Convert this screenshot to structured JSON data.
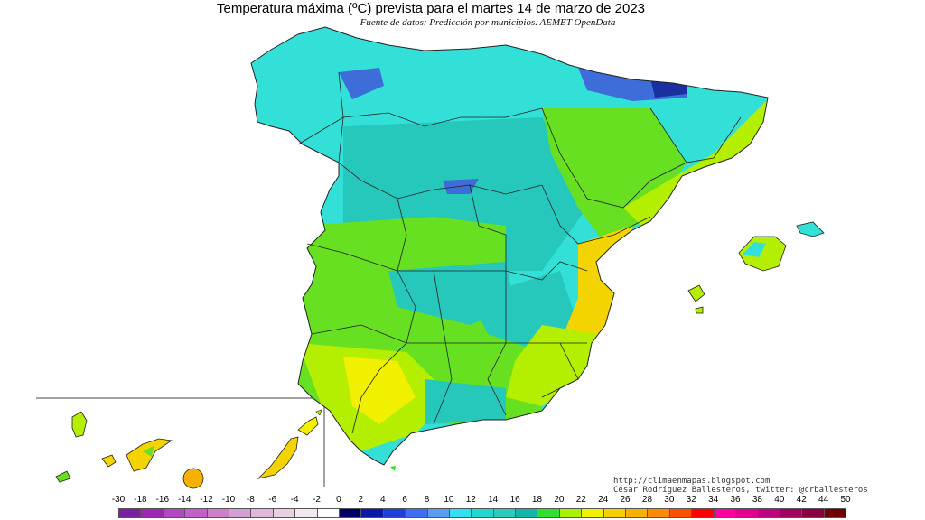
{
  "header": {
    "title": "Temperatura máxima (ºC) prevista para el martes 14 de marzo de 2023",
    "source": "Fuente de datos: Predicción por municipios. AEMET OpenData"
  },
  "credits": {
    "blog": "http://climaenmapas.blogspot.com",
    "author": "César Rodríguez Ballesteros, twitter: @crballesteros"
  },
  "legend": {
    "ticks": [
      "-30",
      "-18",
      "-16",
      "-14",
      "-12",
      "-10",
      "-8",
      "-6",
      "-4",
      "-2",
      "0",
      "2",
      "4",
      "6",
      "8",
      "10",
      "12",
      "14",
      "16",
      "18",
      "20",
      "22",
      "24",
      "26",
      "28",
      "30",
      "32",
      "34",
      "36",
      "38",
      "40",
      "42",
      "44",
      "50"
    ],
    "colors": [
      "#7b1fa2",
      "#9c27b0",
      "#b048c0",
      "#c060c8",
      "#cc80cc",
      "#d4a0d0",
      "#ddb8d8",
      "#e6d0e2",
      "#f0e8ee",
      "#ffffff",
      "#000066",
      "#0a1aa8",
      "#1e3fd8",
      "#3d6ff0",
      "#5a9cf2",
      "#30e0ee",
      "#20d8d0",
      "#2dc8c0",
      "#14b4a8",
      "#30e030",
      "#aaf000",
      "#f0f000",
      "#f4d000",
      "#f8b000",
      "#ff8c00",
      "#ff5000",
      "#ff0000",
      "#ff00a0",
      "#e00090",
      "#c00080",
      "#a00060",
      "#880040",
      "#700000"
    ]
  },
  "map": {
    "colors": {
      "north_cyan": "#33e0d8",
      "plateau_teal": "#26c8bc",
      "mountain_blue": "#3e6cd8",
      "pyrenees_navy": "#1a2fa0",
      "green": "#66e020",
      "lime": "#b4ee00",
      "yellow": "#f0f000",
      "warm_yellow": "#f4d400",
      "border": "#222222"
    }
  }
}
